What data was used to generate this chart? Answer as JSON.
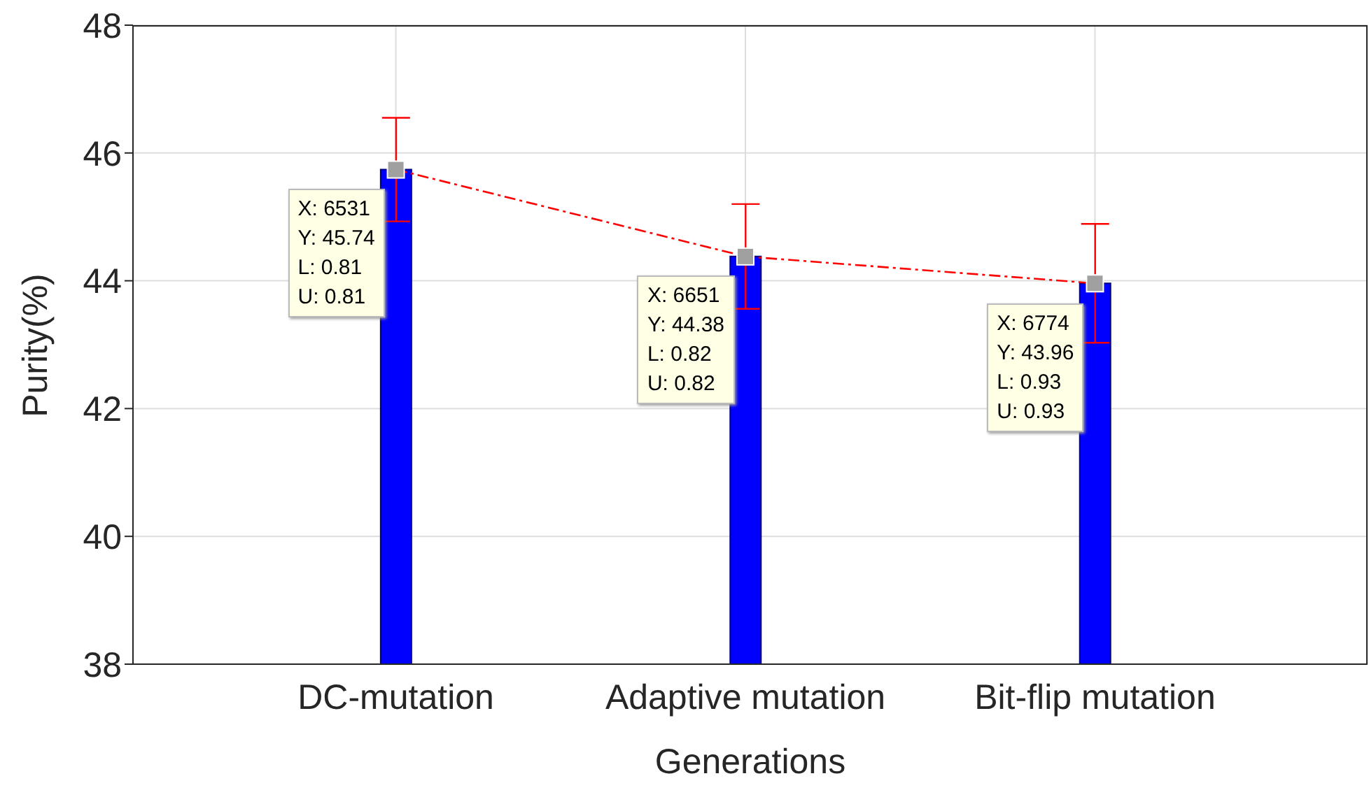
{
  "chart_data": {
    "type": "bar",
    "ylabel": "Purity(%)",
    "xlabel": "Generations",
    "categories": [
      "DC-mutation",
      "Adaptive mutation",
      "Bit-flip mutation"
    ],
    "ylim": [
      38,
      48
    ],
    "yticks": [
      38,
      40,
      42,
      44,
      46,
      48
    ],
    "grid": true,
    "series": [
      {
        "color": "#0000ff",
        "values": [
          45.74,
          44.38,
          43.96
        ],
        "errors": [
          0.81,
          0.82,
          0.93
        ]
      },
      {
        "type": "line",
        "color": "#ff0000",
        "values": [
          45.74,
          44.38,
          43.96
        ],
        "marker": "square",
        "line_style": "dashdot"
      }
    ],
    "annotations": [
      {
        "text": "X: 6531\nY: 45.74\nL: 0.81\nU: 0.81",
        "x": "DC-mutation",
        "y": 45.74
      },
      {
        "text": "X: 6651\nY: 44.38\nL: 0.82\nU: 0.82",
        "x": "Adaptive mutation",
        "y": 44.38
      },
      {
        "text": "X: 6774\nY: 43.96\nL: 0.93\nU: 0.93",
        "x": "Bit-flip mutation",
        "y": 43.96
      }
    ]
  }
}
